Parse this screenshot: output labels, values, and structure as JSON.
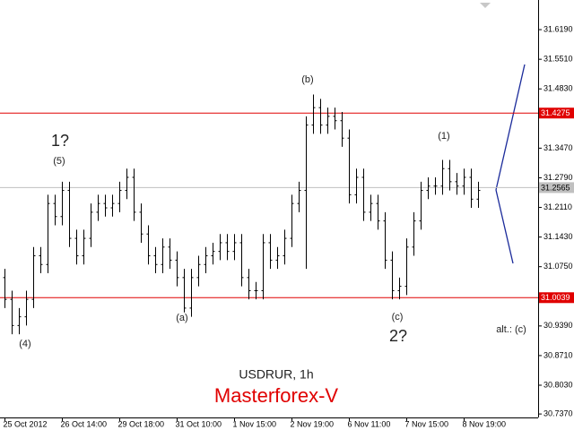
{
  "chart_data": {
    "type": "ohlc",
    "title": "USDRUR, 1h",
    "subtitle": "Masterforex-V",
    "categories": [
      "25 Oct 2012",
      null,
      null,
      null,
      null,
      null,
      null,
      null,
      "26 Oct 14:00",
      null,
      null,
      null,
      null,
      null,
      null,
      null,
      "29 Oct 18:00",
      null,
      null,
      null,
      null,
      null,
      null,
      null,
      "31 Oct 10:00",
      null,
      null,
      null,
      null,
      null,
      null,
      null,
      "1 Nov 15:00",
      null,
      null,
      null,
      null,
      null,
      null,
      null,
      "2 Nov 19:00",
      null,
      null,
      null,
      null,
      null,
      null,
      null,
      "6 Nov 11:00",
      null,
      null,
      null,
      null,
      null,
      null,
      null,
      "7 Nov 15:00",
      null,
      null,
      null,
      null,
      null,
      null,
      null,
      "8 Nov 19:00",
      null,
      null
    ],
    "open": [
      31.05,
      31.0,
      30.94,
      30.96,
      31.0,
      31.1,
      31.08,
      31.22,
      31.19,
      31.25,
      31.14,
      31.1,
      31.14,
      31.2,
      31.22,
      31.21,
      31.22,
      31.25,
      31.28,
      31.2,
      31.15,
      31.1,
      31.08,
      31.12,
      31.09,
      31.05,
      30.98,
      31.05,
      31.08,
      31.1,
      31.11,
      31.13,
      31.11,
      31.13,
      31.05,
      31.02,
      31.02,
      31.13,
      31.09,
      31.1,
      31.14,
      31.22,
      31.25,
      31.4,
      31.44,
      31.4,
      31.42,
      31.41,
      31.37,
      31.24,
      31.28,
      31.2,
      31.22,
      31.18,
      31.09,
      31.02,
      31.03,
      31.12,
      31.18,
      31.25,
      31.26,
      31.26,
      31.3,
      31.27,
      31.26,
      31.28,
      31.23
    ],
    "high": [
      31.07,
      31.02,
      30.98,
      31.02,
      31.12,
      31.12,
      31.24,
      31.24,
      31.27,
      31.27,
      31.16,
      31.16,
      31.22,
      31.24,
      31.24,
      31.24,
      31.27,
      31.3,
      31.3,
      31.22,
      31.17,
      31.12,
      31.14,
      31.14,
      31.11,
      31.07,
      31.07,
      31.1,
      31.12,
      31.13,
      31.15,
      31.15,
      31.15,
      31.15,
      31.07,
      31.04,
      31.15,
      31.15,
      31.12,
      31.16,
      31.24,
      31.27,
      31.42,
      31.47,
      31.46,
      31.44,
      31.44,
      31.43,
      31.39,
      31.3,
      31.3,
      31.24,
      31.24,
      31.2,
      31.11,
      31.05,
      31.14,
      31.2,
      31.27,
      31.28,
      31.28,
      31.32,
      31.32,
      31.29,
      31.3,
      31.3,
      31.27
    ],
    "low": [
      30.98,
      30.92,
      30.92,
      30.94,
      30.98,
      31.06,
      31.06,
      31.17,
      31.17,
      31.12,
      31.08,
      31.08,
      31.12,
      31.18,
      31.19,
      31.19,
      31.2,
      31.23,
      31.18,
      31.13,
      31.08,
      31.06,
      31.06,
      31.07,
      31.03,
      30.97,
      30.96,
      31.03,
      31.06,
      31.08,
      31.09,
      31.09,
      31.09,
      31.03,
      31.0,
      31.0,
      31.0,
      31.07,
      31.07,
      31.08,
      31.12,
      31.2,
      31.07,
      31.38,
      31.38,
      31.38,
      31.39,
      31.35,
      31.22,
      31.22,
      31.18,
      31.18,
      31.16,
      31.07,
      31.0,
      31.0,
      31.01,
      31.1,
      31.16,
      31.23,
      31.24,
      31.24,
      31.25,
      31.24,
      31.24,
      31.21,
      31.21
    ],
    "close": [
      31.0,
      30.94,
      30.96,
      31.0,
      31.1,
      31.08,
      31.22,
      31.19,
      31.25,
      31.14,
      31.1,
      31.14,
      31.2,
      31.22,
      31.21,
      31.22,
      31.25,
      31.28,
      31.2,
      31.15,
      31.1,
      31.08,
      31.12,
      31.09,
      31.05,
      30.98,
      31.05,
      31.08,
      31.1,
      31.11,
      31.13,
      31.11,
      31.13,
      31.05,
      31.02,
      31.02,
      31.13,
      31.09,
      31.1,
      31.14,
      31.22,
      31.25,
      31.4,
      31.44,
      31.4,
      31.42,
      31.41,
      31.37,
      31.24,
      31.28,
      31.2,
      31.22,
      31.18,
      31.09,
      31.02,
      31.03,
      31.12,
      31.18,
      31.25,
      31.26,
      31.26,
      31.3,
      31.27,
      31.26,
      31.28,
      31.23,
      31.25
    ],
    "color": "#000000",
    "ylim": [
      30.729,
      31.687
    ],
    "yticks": [
      {
        "value": 31.619,
        "label": "31.6190"
      },
      {
        "value": 31.551,
        "label": "31.5510"
      },
      {
        "value": 31.483,
        "label": "31.4830"
      },
      {
        "value": 31.347,
        "label": "31.3470"
      },
      {
        "value": 31.279,
        "label": "31.2790"
      },
      {
        "value": 31.211,
        "label": "31.2110"
      },
      {
        "value": 31.143,
        "label": "31.1430"
      },
      {
        "value": 31.075,
        "label": "31.0750"
      },
      {
        "value": 30.939,
        "label": "30.9390"
      },
      {
        "value": 30.871,
        "label": "30.8710"
      },
      {
        "value": 30.803,
        "label": "30.8030"
      },
      {
        "value": 30.737,
        "label": "30.7370"
      }
    ],
    "levels": [
      {
        "value": 31.4275,
        "color": "#e00000"
      },
      {
        "value": 31.2565,
        "color": "#c0c0c0"
      },
      {
        "value": 31.0039,
        "color": "#e00000"
      }
    ],
    "annotations": [
      "(b)",
      "1?",
      "(5)",
      "(4)",
      "(a)",
      "(c)",
      "2?",
      "(1)",
      "alt.: (c)"
    ],
    "grid": false
  }
}
